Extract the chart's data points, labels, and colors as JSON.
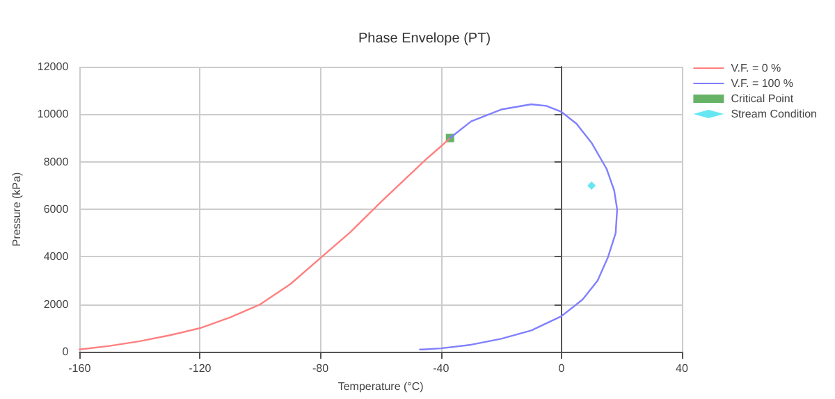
{
  "chart_data": {
    "type": "line",
    "title": "Phase Envelope (PT)",
    "xlabel": "Temperature (°C)",
    "ylabel": "Pressure (kPa)",
    "xlim": [
      -160,
      40
    ],
    "xticks": [
      -160,
      -120,
      -80,
      -40,
      0,
      40
    ],
    "ylim": [
      0,
      12000
    ],
    "yticks": [
      0,
      2000,
      4000,
      6000,
      8000,
      10000,
      12000
    ],
    "grid": true,
    "legend": "top right",
    "series": [
      {
        "name": "V.F. = 0 %",
        "color": "#ff8080",
        "marker": "none",
        "x": [
          -160,
          -150,
          -140,
          -130,
          -120,
          -110,
          -100,
          -90,
          -80,
          -70,
          -60,
          -50,
          -45,
          -40,
          -37
        ],
        "values": [
          100,
          250,
          450,
          700,
          1000,
          1450,
          2000,
          2850,
          3950,
          5050,
          6300,
          7500,
          8100,
          8650,
          9000
        ]
      },
      {
        "name": "V.F. = 100 %",
        "color": "#8080ff",
        "marker": "none",
        "x": [
          -37,
          -30,
          -20,
          -10,
          -5,
          0,
          5,
          10,
          15,
          17.5,
          18.5,
          18,
          15.5,
          12,
          7,
          0,
          -10,
          -20,
          -30,
          -40,
          -46,
          -47
        ],
        "values": [
          9000,
          9700,
          10200,
          10420,
          10350,
          10100,
          9600,
          8800,
          7700,
          6800,
          6000,
          5000,
          4000,
          3000,
          2200,
          1500,
          900,
          550,
          300,
          150,
          100,
          100
        ]
      },
      {
        "name": "Critical Point",
        "type": "scatter",
        "color": "#40a040",
        "marker": "square",
        "x": [
          -37
        ],
        "values": [
          9000
        ]
      },
      {
        "name": "Stream Condition",
        "type": "scatter",
        "color": "#40e0f0",
        "marker": "diamond",
        "x": [
          10
        ],
        "values": [
          7000
        ]
      }
    ]
  }
}
